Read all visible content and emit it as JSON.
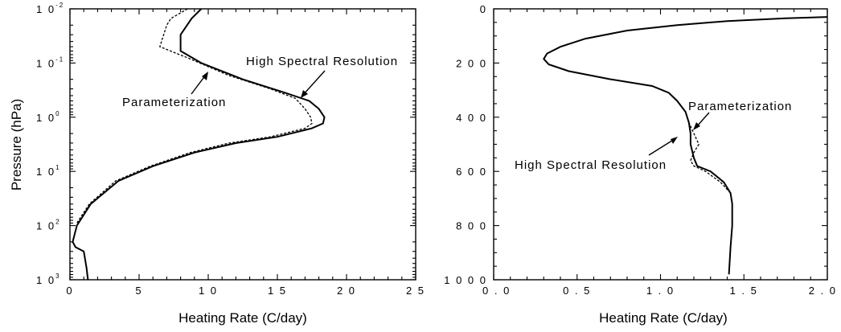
{
  "chart_data": [
    {
      "type": "line",
      "ylabel": "Pressure (hPa)",
      "xlabel": "Heating Rate (C/day)",
      "xlim": [
        0,
        25
      ],
      "ylim_log10": [
        -2,
        3
      ],
      "y_scale": "log",
      "y_inverted": true,
      "x_ticks": [
        "0",
        "5",
        "1 0",
        "1 5",
        "2 0",
        "2 5"
      ],
      "x_tick_values": [
        0,
        5,
        10,
        15,
        20,
        25
      ],
      "y_ticks": [
        {
          "base": "1 0",
          "exp": "-2"
        },
        {
          "base": "1 0",
          "exp": "-1"
        },
        {
          "base": "1 0",
          "exp": "0"
        },
        {
          "base": "1 0",
          "exp": "1"
        },
        {
          "base": "1 0",
          "exp": "2"
        },
        {
          "base": "1 0",
          "exp": "3"
        }
      ],
      "y_tick_exponents": [
        -2,
        -1,
        0,
        1,
        2,
        3
      ],
      "annotations": [
        "High Spectral Resolution",
        "Parameterization"
      ],
      "series": [
        {
          "name": "High Spectral Resolution",
          "style": "solid",
          "x": [
            9.5,
            8.8,
            8.0,
            8.0,
            9.5,
            12.5,
            15.5,
            17.3,
            18.0,
            18.4,
            18.3,
            17.5,
            15.0,
            12.0,
            9.0,
            6.0,
            3.5,
            1.5,
            0.5,
            0.2,
            0.4,
            1.0,
            1.2,
            1.3
          ],
          "y": [
            0.01,
            0.015,
            0.03,
            0.06,
            0.1,
            0.2,
            0.35,
            0.5,
            0.7,
            1.0,
            1.3,
            1.6,
            2.3,
            3.0,
            4.5,
            8.0,
            15.0,
            40.0,
            100.0,
            200.0,
            250.0,
            300.0,
            600.0,
            1000.0
          ]
        },
        {
          "name": "Parameterization",
          "style": "dashed",
          "x": [
            8.5,
            7.3,
            7.0,
            6.5,
            8.5,
            11.5,
            14.5,
            16.3,
            17.0,
            17.4,
            17.5,
            17.0,
            14.5,
            11.5,
            8.7,
            5.8,
            3.3,
            1.4,
            0.5
          ],
          "y": [
            0.01,
            0.015,
            0.02,
            0.05,
            0.08,
            0.17,
            0.3,
            0.45,
            0.7,
            1.0,
            1.3,
            1.6,
            2.3,
            3.0,
            4.5,
            8.0,
            15.0,
            40.0,
            90.0
          ]
        }
      ]
    },
    {
      "type": "line",
      "xlabel": "Heating Rate (C/day)",
      "xlim": [
        0.0,
        2.0
      ],
      "ylim": [
        0,
        1000
      ],
      "y_inverted": true,
      "x_ticks": [
        "0 . 0",
        "0 . 5",
        "1 . 0",
        "1 . 5",
        "2 . 0"
      ],
      "x_tick_values": [
        0.0,
        0.5,
        1.0,
        1.5,
        2.0
      ],
      "y_ticks": [
        "0",
        "2 0 0",
        "4 0 0",
        "6 0 0",
        "8 0 0",
        "1 0 0 0"
      ],
      "y_tick_values": [
        0,
        200,
        400,
        600,
        800,
        1000
      ],
      "annotations": [
        "Parameterization",
        "High Spectral Resolution"
      ],
      "series": [
        {
          "name": "High Spectral Resolution",
          "style": "solid",
          "x": [
            2.0,
            1.75,
            1.4,
            1.1,
            0.8,
            0.55,
            0.4,
            0.32,
            0.3,
            0.33,
            0.45,
            0.7,
            0.95,
            1.05,
            1.1,
            1.15,
            1.17,
            1.18,
            1.18,
            1.2,
            1.22,
            1.3,
            1.38,
            1.42,
            1.43,
            1.43,
            1.42,
            1.41
          ],
          "y": [
            30,
            35,
            45,
            60,
            80,
            110,
            140,
            165,
            185,
            205,
            230,
            260,
            285,
            310,
            340,
            380,
            420,
            460,
            500,
            550,
            580,
            600,
            640,
            680,
            720,
            800,
            880,
            980
          ]
        },
        {
          "name": "Parameterization",
          "style": "dashed",
          "x": [
            2.0,
            1.75,
            1.4,
            1.1,
            0.8,
            0.55,
            0.4,
            0.32,
            0.3,
            0.33,
            0.45,
            0.7,
            0.95,
            1.05,
            1.1,
            1.15,
            1.17,
            1.2,
            1.23,
            1.2,
            1.18,
            1.2,
            1.27,
            1.36,
            1.42,
            1.43,
            1.43,
            1.42,
            1.41
          ],
          "y": [
            30,
            35,
            45,
            60,
            80,
            110,
            140,
            165,
            185,
            205,
            230,
            260,
            285,
            310,
            340,
            380,
            420,
            460,
            500,
            530,
            560,
            580,
            600,
            640,
            680,
            720,
            800,
            880,
            980
          ]
        }
      ]
    }
  ]
}
